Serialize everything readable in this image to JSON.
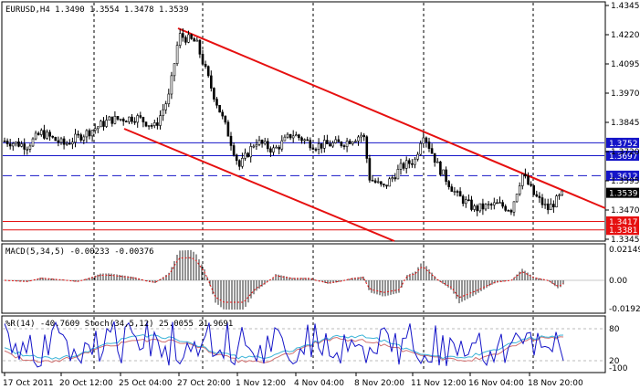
{
  "header": {
    "main_title": "EURUSD,H4  1.3490 1.3554 1.3478 1.3539",
    "macd_title": "MACD(5,34,5) -0.00233 -0.00376",
    "osc_title": "%R(14) -40.7609  Stoch(34,5,12) 25.0055 21.9691"
  },
  "price_axis": {
    "ticks": [
      "1.4345",
      "1.4220",
      "1.4095",
      "1.3970",
      "1.3845",
      "1.3720",
      "1.3595",
      "1.3470",
      "1.3345"
    ],
    "ylim": [
      1.3345,
      1.4345
    ]
  },
  "price_levels": [
    {
      "label": "1.3752",
      "value": 1.3752,
      "color": "#1515c8",
      "style": "solid"
    },
    {
      "label": "1.3697",
      "value": 1.3697,
      "color": "#1515c8",
      "style": "solid"
    },
    {
      "label": "1.3612",
      "value": 1.3612,
      "color": "#1515c8",
      "style": "dashed"
    },
    {
      "label": "1.3539",
      "value": 1.3539,
      "color": "#000000",
      "style": "current"
    },
    {
      "label": "1.3417",
      "value": 1.3417,
      "color": "#e61010",
      "style": "solid"
    },
    {
      "label": "1.3381",
      "value": 1.3381,
      "color": "#e61010",
      "style": "solid"
    }
  ],
  "macd_axis": {
    "ticks": [
      "0.02149",
      "0.00",
      "-0.01929"
    ]
  },
  "osc_axis": {
    "ticks": [
      "80",
      "20",
      "-100"
    ]
  },
  "time_axis": {
    "labels": [
      "17 Oct 2011",
      "20 Oct 12:00",
      "25 Oct 04:00",
      "27 Oct 20:00",
      "1 Nov 12:00",
      "4 Nov 04:00",
      "8 Nov 20:00",
      "11 Nov 12:00",
      "16 Nov 04:00",
      "18 Nov 20:00"
    ]
  },
  "colors": {
    "background": "#ffffff",
    "candle": "#000000",
    "channel": "#e61010",
    "level_blue": "#1515c8",
    "macd_hist": "#2a2a2a",
    "macd_signal": "#e61010",
    "wpr": "#1515c8",
    "stoch_main": "#3cb4d8",
    "stoch_signal": "#d07070"
  }
}
